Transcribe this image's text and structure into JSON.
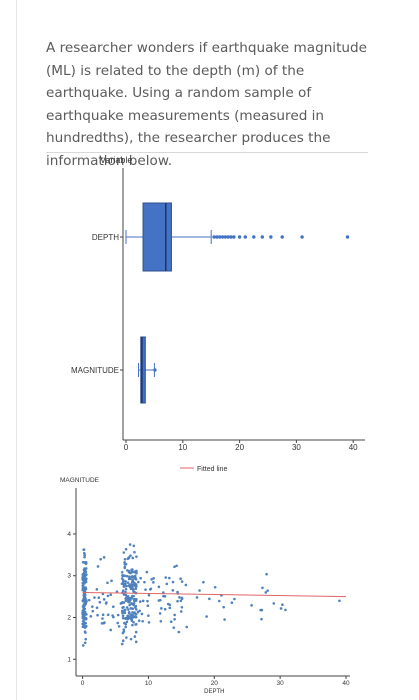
{
  "question": {
    "text": "A researcher wonders if earthquake magnitude (ML) is related to the depth (m) of the earthquake. Using a random sample of earthquake measurements (measured in hundredths), the researcher produces the information below."
  },
  "chart_data": [
    {
      "type": "box",
      "title": "",
      "ylabel": "Variable",
      "categories": [
        "DEPTH",
        "MAGNITUDE"
      ],
      "xlim": [
        -2,
        40
      ],
      "xticks": [
        "0",
        "10",
        "20",
        "30",
        "40"
      ],
      "boxes": [
        {
          "name": "DEPTH",
          "min": 0,
          "q1": 3,
          "median": 7,
          "q3": 8,
          "whisker_high": 15,
          "outliers": [
            15.5,
            16,
            16.5,
            17,
            17.5,
            18,
            18.5,
            19,
            20,
            21,
            22.5,
            24,
            25.5,
            27.5,
            31,
            39
          ]
        },
        {
          "name": "MAGNITUDE",
          "min": 2.2,
          "q1": 2.6,
          "median": 2.8,
          "q3": 3.4,
          "whisker_high": 5,
          "outliers": [
            5.1
          ]
        }
      ],
      "color": "#4472c4"
    },
    {
      "type": "scatter",
      "title": "",
      "legend": "Fitted line",
      "xlabel": "DEPTH",
      "ylabel": "MAGNITUDE",
      "xlim": [
        -1,
        40
      ],
      "ylim": [
        0.6,
        5.1
      ],
      "xticks": [
        "0",
        "10",
        "20",
        "30",
        "40"
      ],
      "yticks": [
        "1",
        "2",
        "3",
        "4"
      ],
      "fitted_line": {
        "x": [
          0,
          40
        ],
        "y": [
          2.6,
          2.5
        ]
      },
      "color": "#4f81bd",
      "line_color": "#e06666"
    }
  ]
}
